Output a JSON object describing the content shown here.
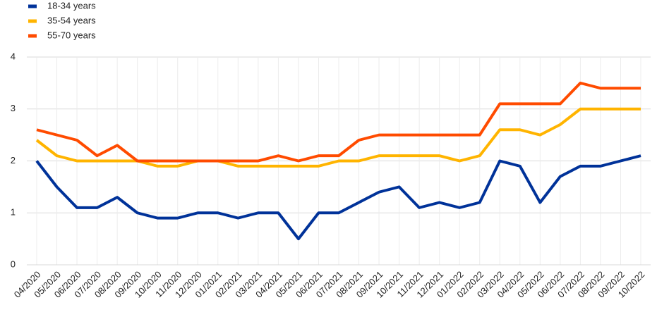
{
  "chart_data": {
    "type": "line",
    "categories": [
      "04/2020",
      "05/2020",
      "06/2020",
      "07/2020",
      "08/2020",
      "09/2020",
      "10/2020",
      "11/2020",
      "12/2020",
      "01/2021",
      "02/2021",
      "03/2021",
      "04/2021",
      "05/2021",
      "06/2021",
      "07/2021",
      "08/2021",
      "09/2021",
      "10/2021",
      "11/2021",
      "12/2021",
      "01/2022",
      "02/2022",
      "03/2022",
      "04/2022",
      "05/2022",
      "06/2022",
      "07/2022",
      "08/2022",
      "09/2022",
      "10/2022"
    ],
    "series": [
      {
        "name": "18-34 years",
        "color": "#003299",
        "values": [
          2.0,
          1.5,
          1.1,
          1.1,
          1.3,
          1.0,
          0.9,
          0.9,
          1.0,
          1.0,
          0.9,
          1.0,
          1.0,
          0.5,
          1.0,
          1.0,
          1.2,
          1.4,
          1.5,
          1.1,
          1.2,
          1.1,
          1.2,
          2.0,
          1.9,
          1.2,
          1.7,
          1.9,
          1.9,
          2.0,
          2.1
        ]
      },
      {
        "name": "35-54 years",
        "color": "#ffb400",
        "values": [
          2.4,
          2.1,
          2.0,
          2.0,
          2.0,
          2.0,
          1.9,
          1.9,
          2.0,
          2.0,
          1.9,
          1.9,
          1.9,
          1.9,
          1.9,
          2.0,
          2.0,
          2.1,
          2.1,
          2.1,
          2.1,
          2.0,
          2.1,
          2.6,
          2.6,
          2.5,
          2.7,
          3.0,
          3.0,
          3.0,
          3.0
        ]
      },
      {
        "name": "55-70 years",
        "color": "#ff4b00",
        "values": [
          2.6,
          2.5,
          2.4,
          2.1,
          2.3,
          2.0,
          2.0,
          2.0,
          2.0,
          2.0,
          2.0,
          2.0,
          2.1,
          2.0,
          2.1,
          2.1,
          2.4,
          2.5,
          2.5,
          2.5,
          2.5,
          2.5,
          2.5,
          3.1,
          3.1,
          3.1,
          3.1,
          3.5,
          3.4,
          3.4,
          3.4
        ]
      }
    ],
    "ylim": [
      0,
      4
    ],
    "yticks": [
      0,
      1,
      2,
      3,
      4
    ],
    "grid": true,
    "legend": "top-left"
  }
}
